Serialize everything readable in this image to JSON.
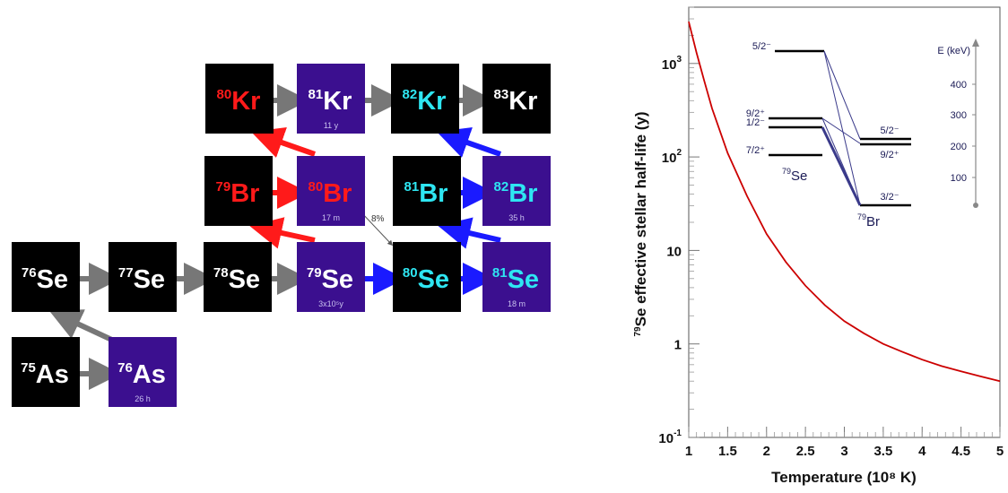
{
  "colors": {
    "black_box": "#000000",
    "purple_box": "#3b0f8f",
    "red_text": "#ff1a1a",
    "cyan_text": "#2ee6f2",
    "white_text": "#ffffff",
    "grey_arrow": "#777777",
    "red_arrow": "#ff1a1a",
    "blue_arrow": "#1a1aff",
    "curve": "#cc0000",
    "level_ink": "#1a1a55"
  },
  "network": {
    "boxes": [
      {
        "id": "kr80",
        "mass": "80",
        "el": "Kr",
        "color": "red",
        "bg": "black",
        "sub": ""
      },
      {
        "id": "kr81",
        "mass": "81",
        "el": "Kr",
        "color": "white",
        "bg": "purple",
        "sub": "11 y"
      },
      {
        "id": "kr82",
        "mass": "82",
        "el": "Kr",
        "color": "cyan",
        "bg": "black",
        "sub": ""
      },
      {
        "id": "kr83",
        "mass": "83",
        "el": "Kr",
        "color": "white",
        "bg": "black",
        "sub": ""
      },
      {
        "id": "br79",
        "mass": "79",
        "el": "Br",
        "color": "red",
        "bg": "black",
        "sub": ""
      },
      {
        "id": "br80",
        "mass": "80",
        "el": "Br",
        "color": "red",
        "bg": "purple",
        "sub": "17 m"
      },
      {
        "id": "br81",
        "mass": "81",
        "el": "Br",
        "color": "cyan",
        "bg": "black",
        "sub": ""
      },
      {
        "id": "br82",
        "mass": "82",
        "el": "Br",
        "color": "cyan",
        "bg": "purple",
        "sub": "35 h"
      },
      {
        "id": "se76",
        "mass": "76",
        "el": "Se",
        "color": "white",
        "bg": "black",
        "sub": ""
      },
      {
        "id": "se77",
        "mass": "77",
        "el": "Se",
        "color": "white",
        "bg": "black",
        "sub": ""
      },
      {
        "id": "se78",
        "mass": "78",
        "el": "Se",
        "color": "white",
        "bg": "black",
        "sub": ""
      },
      {
        "id": "se79",
        "mass": "79",
        "el": "Se",
        "color": "white",
        "bg": "purple",
        "sub": "3x10⁵y"
      },
      {
        "id": "se80",
        "mass": "80",
        "el": "Se",
        "color": "cyan",
        "bg": "black",
        "sub": ""
      },
      {
        "id": "se81",
        "mass": "81",
        "el": "Se",
        "color": "cyan",
        "bg": "purple",
        "sub": "18 m"
      },
      {
        "id": "as75",
        "mass": "75",
        "el": "As",
        "color": "white",
        "bg": "black",
        "sub": ""
      },
      {
        "id": "as76",
        "mass": "76",
        "el": "As",
        "color": "white",
        "bg": "purple",
        "sub": "26 h"
      }
    ],
    "branch_label": "8%"
  },
  "chart_data": {
    "type": "line",
    "title": "",
    "xlabel": "Temperature (10⁸ K)",
    "ylabel_mass": "79",
    "ylabel": "Se effective stellar half-life (y)",
    "xlim": [
      1,
      5
    ],
    "ylim": [
      0.1,
      4000
    ],
    "yscale": "log",
    "x_ticks": [
      "1",
      "1.5",
      "2",
      "2.5",
      "3",
      "3.5",
      "4",
      "4.5",
      "5"
    ],
    "y_ticks": [
      {
        "base": "10",
        "exp": "-1"
      },
      {
        "base": "1",
        "exp": ""
      },
      {
        "base": "10",
        "exp": ""
      },
      {
        "base": "10",
        "exp": "2"
      },
      {
        "base": "10",
        "exp": "3"
      }
    ],
    "series": [
      {
        "x": [
          1.0,
          1.1,
          1.2,
          1.3,
          1.5,
          1.75,
          2.0,
          2.25,
          2.5,
          2.75,
          3.0,
          3.25,
          3.5,
          3.75,
          4.0,
          4.25,
          4.5,
          4.75,
          5.0
        ],
        "y": [
          2800,
          1300,
          650,
          330,
          110,
          38,
          15,
          7.5,
          4.2,
          2.6,
          1.75,
          1.3,
          1.0,
          0.82,
          0.68,
          0.58,
          0.51,
          0.45,
          0.4
        ]
      }
    ],
    "inset": {
      "energy_axis_label": "E (keV)",
      "energy_ticks": [
        "100",
        "200",
        "300",
        "400"
      ],
      "se_levels": [
        "5/2⁻",
        "9/2⁺",
        "1/2⁻",
        "7/2⁺"
      ],
      "se_label_mass": "79",
      "se_label_el": "Se",
      "br_levels": [
        "5/2⁻",
        "9/2⁺",
        "3/2⁻"
      ],
      "br_label_mass": "79",
      "br_label_el": "Br"
    }
  }
}
